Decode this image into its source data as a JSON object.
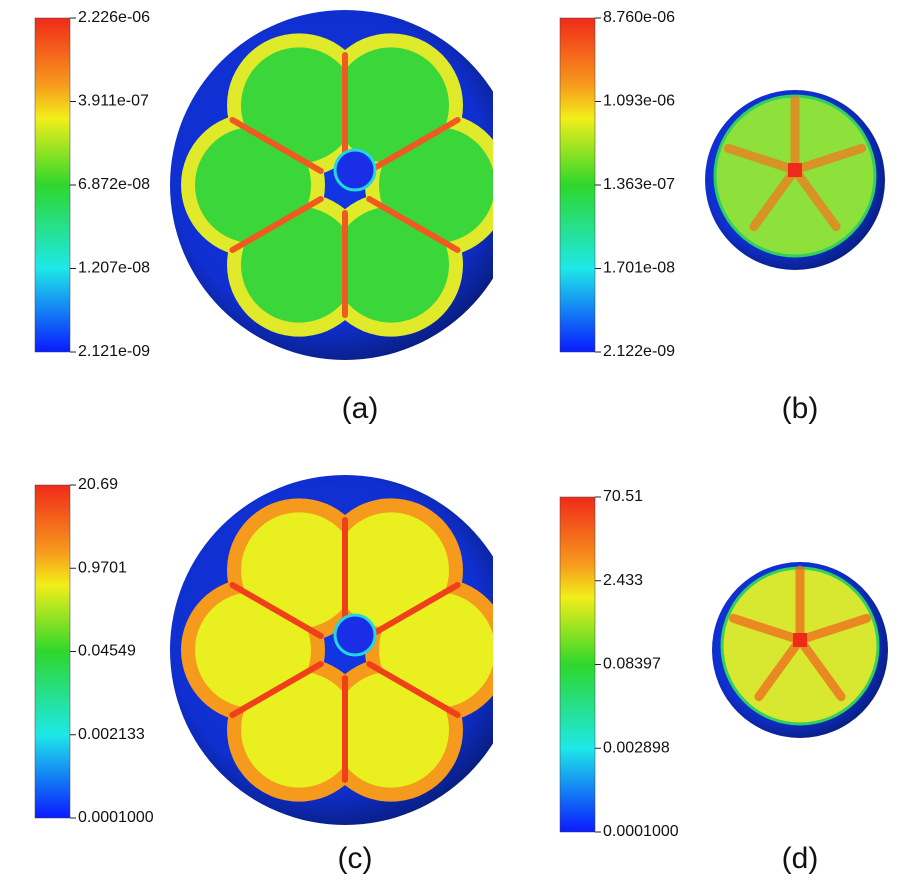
{
  "panels": [
    {
      "label": "(a)",
      "colorbar_ticks": [
        "2.226e-06",
        "3.911e-07",
        "6.872e-08",
        "1.207e-08",
        "2.121e-09"
      ]
    },
    {
      "label": "(b)",
      "colorbar_ticks": [
        "8.760e-06",
        "1.093e-06",
        "1.363e-07",
        "1.701e-08",
        "2.122e-09"
      ]
    },
    {
      "label": "(c)",
      "colorbar_ticks": [
        "20.69",
        "0.9701",
        "0.04549",
        "0.002133",
        "0.0001000"
      ]
    },
    {
      "label": "(d)",
      "colorbar_ticks": [
        "70.51",
        "2.433",
        "0.08397",
        "0.002898",
        "0.0001000"
      ]
    }
  ]
}
